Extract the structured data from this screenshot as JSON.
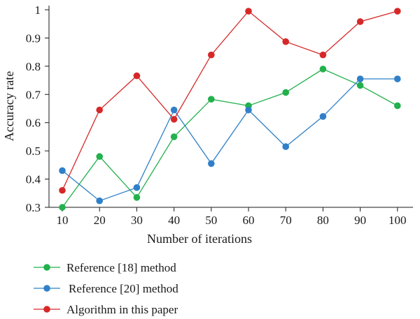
{
  "chart_data": {
    "type": "line",
    "xlabel": "Number of iterations",
    "ylabel": "Accuracy rate",
    "x": [
      10,
      20,
      30,
      40,
      50,
      60,
      70,
      80,
      90,
      100
    ],
    "x_ticks": [
      "10",
      "20",
      "30",
      "40",
      "50",
      "60",
      "70",
      "80",
      "90",
      "100"
    ],
    "y_ticks": [
      "0.3",
      "0.4",
      "0.5",
      "0.6",
      "0.7",
      "0.8",
      "0.9",
      "1"
    ],
    "ylim": [
      0.3,
      1.0
    ],
    "grid": false,
    "legend_position": "bottom-left",
    "series": [
      {
        "name": "Reference [18] method",
        "color": "#22b14c",
        "values": [
          0.3,
          0.48,
          0.335,
          0.55,
          0.683,
          0.66,
          0.707,
          0.79,
          0.732,
          0.66
        ]
      },
      {
        "name": "Reference [20] method",
        "color": "#2f80c8",
        "values": [
          0.43,
          0.323,
          0.37,
          0.645,
          0.455,
          0.645,
          0.515,
          0.622,
          0.755,
          0.755
        ]
      },
      {
        "name": "Algorithm in this paper",
        "color": "#d62828",
        "values": [
          0.36,
          0.645,
          0.766,
          0.612,
          0.84,
          0.995,
          0.887,
          0.84,
          0.958,
          0.995
        ]
      }
    ]
  }
}
